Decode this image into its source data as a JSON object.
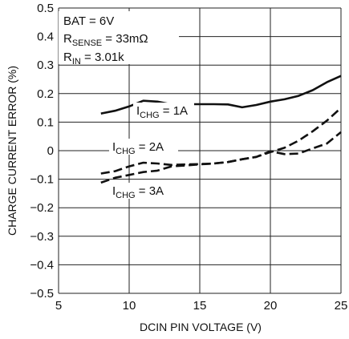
{
  "chart_data": {
    "type": "line",
    "title": "",
    "xlabel": "DCIN PIN VOLTAGE (V)",
    "ylabel": "CHARGE CURRENT ERROR (%)",
    "xlim": [
      5,
      25
    ],
    "ylim": [
      -0.5,
      0.5
    ],
    "x_ticks": [
      "5",
      "10",
      "15",
      "20",
      "25"
    ],
    "y_ticks": [
      "0.5",
      "0.4",
      "0.3",
      "0.2",
      "0.1",
      "0",
      "−0.1",
      "−0.2",
      "−0.3",
      "−0.4",
      "−0.5"
    ],
    "grid": true,
    "conditions": [
      {
        "text": "BAT = 6V"
      },
      {
        "main": "R",
        "sub": "SENSE",
        "rest": " = 33mΩ"
      },
      {
        "main": "R",
        "sub": "IN",
        "rest": " = 3.01k"
      }
    ],
    "series": [
      {
        "label_main": "I",
        "label_sub": "CHG",
        "label_rest": " = 1A",
        "style": "solid",
        "points": [
          [
            8,
            0.13
          ],
          [
            9,
            0.14
          ],
          [
            10,
            0.155
          ],
          [
            11,
            0.175
          ],
          [
            12,
            0.172
          ],
          [
            13,
            0.162
          ],
          [
            14,
            0.163
          ],
          [
            15,
            0.163
          ],
          [
            16,
            0.163
          ],
          [
            17,
            0.162
          ],
          [
            18,
            0.152
          ],
          [
            19,
            0.16
          ],
          [
            20,
            0.172
          ],
          [
            21,
            0.18
          ],
          [
            22,
            0.192
          ],
          [
            23,
            0.212
          ],
          [
            24,
            0.24
          ],
          [
            25,
            0.262
          ]
        ]
      },
      {
        "label_main": "I",
        "label_sub": "CHG",
        "label_rest": " = 2A",
        "style": "dashed",
        "points": [
          [
            8,
            -0.08
          ],
          [
            9,
            -0.072
          ],
          [
            10,
            -0.055
          ],
          [
            11,
            -0.042
          ],
          [
            12,
            -0.045
          ],
          [
            13,
            -0.05
          ],
          [
            14,
            -0.048
          ],
          [
            15,
            -0.047
          ],
          [
            16,
            -0.045
          ],
          [
            17,
            -0.04
          ],
          [
            18,
            -0.03
          ],
          [
            19,
            -0.022
          ],
          [
            20,
            -0.005
          ],
          [
            21,
            0.01
          ],
          [
            22,
            0.035
          ],
          [
            23,
            0.068
          ],
          [
            24,
            0.105
          ],
          [
            25,
            0.15
          ]
        ]
      },
      {
        "label_main": "I",
        "label_sub": "CHG",
        "label_rest": " = 3A",
        "style": "dashed",
        "points": [
          [
            8,
            -0.112
          ],
          [
            9,
            -0.095
          ],
          [
            10,
            -0.085
          ],
          [
            11,
            -0.075
          ],
          [
            12,
            -0.07
          ],
          [
            13,
            -0.055
          ],
          [
            14,
            -0.052
          ],
          [
            15,
            -0.048
          ],
          [
            16,
            -0.045
          ],
          [
            17,
            -0.04
          ],
          [
            18,
            -0.03
          ],
          [
            19,
            -0.022
          ],
          [
            20,
            -0.002
          ],
          [
            21,
            -0.012
          ],
          [
            22,
            -0.01
          ],
          [
            23,
            0.008
          ],
          [
            24,
            0.025
          ],
          [
            25,
            0.065
          ]
        ]
      }
    ]
  }
}
